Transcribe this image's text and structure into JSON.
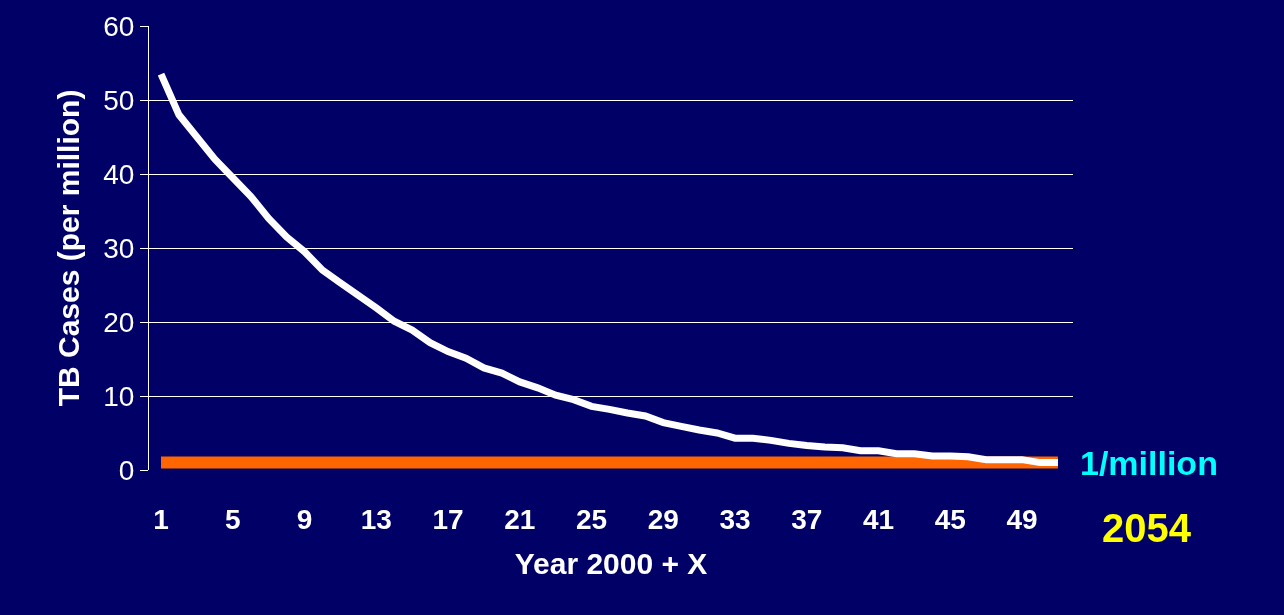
{
  "chart_data": {
    "type": "line",
    "xlabel": "Year 2000 + X",
    "ylabel": "TB Cases (per million)",
    "x": [
      1,
      2,
      3,
      4,
      5,
      6,
      7,
      8,
      9,
      10,
      11,
      12,
      13,
      14,
      15,
      16,
      17,
      18,
      19,
      20,
      21,
      22,
      23,
      24,
      25,
      26,
      27,
      28,
      29,
      30,
      31,
      32,
      33,
      34,
      35,
      36,
      37,
      38,
      39,
      40,
      41,
      42,
      43,
      44,
      45,
      46,
      47,
      48,
      49,
      50,
      51
    ],
    "series": [
      {
        "name": "1/million",
        "color": "#ff6600",
        "values": [
          1,
          1,
          1,
          1,
          1,
          1,
          1,
          1,
          1,
          1,
          1,
          1,
          1,
          1,
          1,
          1,
          1,
          1,
          1,
          1,
          1,
          1,
          1,
          1,
          1,
          1,
          1,
          1,
          1,
          1,
          1,
          1,
          1,
          1,
          1,
          1,
          1,
          1,
          1,
          1,
          1,
          1,
          1,
          1,
          1,
          1,
          1,
          1,
          1,
          1,
          1
        ]
      },
      {
        "color": "#ffffff",
        "values": [
          53.5,
          48,
          45,
          42,
          39.5,
          37,
          34,
          31.5,
          29.5,
          27,
          25.3,
          23.6,
          21.9,
          20.1,
          18.9,
          17.2,
          16,
          15.1,
          13.8,
          13.1,
          11.9,
          11.1,
          10.1,
          9.5,
          8.6,
          8.2,
          7.7,
          7.3,
          6.4,
          5.9,
          5.4,
          5.0,
          4.3,
          4.3,
          4.0,
          3.6,
          3.3,
          3.1,
          3.0,
          2.6,
          2.6,
          2.2,
          2.2,
          1.9,
          1.9,
          1.8,
          1.4,
          1.4,
          1.4,
          1.0,
          1.0
        ]
      }
    ],
    "annotations": [
      "2054"
    ],
    "xlim": [
      0.33,
      51.84
    ],
    "xticks": [
      1,
      5,
      9,
      13,
      17,
      21,
      25,
      29,
      33,
      37,
      41,
      45,
      49
    ],
    "ylim": [
      0,
      60
    ],
    "yticks": [
      0,
      10,
      20,
      30,
      40,
      50,
      60
    ],
    "grid": "y",
    "legend": false,
    "marker": "none",
    "line_style": "solid"
  }
}
